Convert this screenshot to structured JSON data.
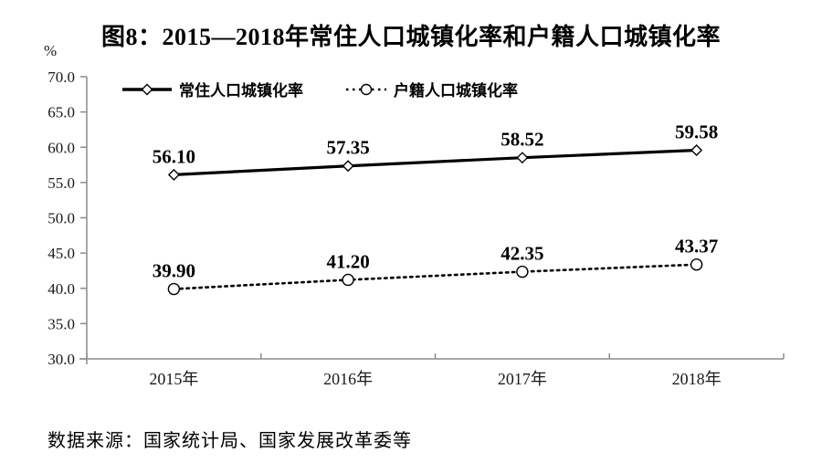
{
  "chart": {
    "title": "图8：2015—2018年常住人口城镇化率和户籍人口城镇化率",
    "ylabel": "%",
    "source": "数据来源：国家统计局、国家发展改革委等"
  },
  "chart_data": {
    "type": "line",
    "categories": [
      "2015年",
      "2016年",
      "2017年",
      "2018年"
    ],
    "series": [
      {
        "name": "常住人口城镇化率",
        "values": [
          56.1,
          57.35,
          58.52,
          59.58
        ],
        "line_style": "solid",
        "marker": "diamond"
      },
      {
        "name": "户籍人口城镇化率",
        "values": [
          39.9,
          41.2,
          42.35,
          43.37
        ],
        "line_style": "dotted",
        "marker": "circle"
      }
    ],
    "data_labels": [
      [
        "56.10",
        "57.35",
        "58.52",
        "59.58"
      ],
      [
        "39.90",
        "41.20",
        "42.35",
        "43.37"
      ]
    ],
    "ylim": [
      30.0,
      70.0
    ],
    "ytick_step": 5.0,
    "ytick_labels": [
      "30.0",
      "35.0",
      "40.0",
      "45.0",
      "50.0",
      "55.0",
      "60.0",
      "65.0",
      "70.0"
    ],
    "grid": false,
    "legend_position": "top-left-inside",
    "colors": {
      "line": "#000000",
      "axis": "#8c8c8c",
      "text": "#000000",
      "background": "#ffffff"
    }
  }
}
